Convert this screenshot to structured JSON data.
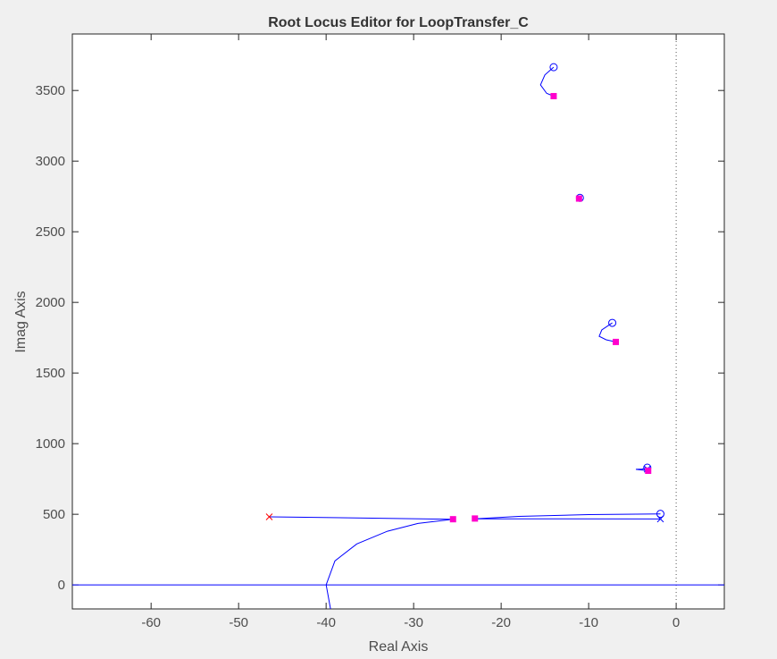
{
  "chart_data": {
    "type": "line",
    "title": "Root Locus Editor for LoopTransfer_C",
    "xlabel": "Real Axis",
    "ylabel": "Imag Axis",
    "xlim": [
      -69,
      5.5
    ],
    "ylim": [
      -170,
      3900
    ],
    "xticks": [
      -60,
      -50,
      -40,
      -30,
      -20,
      -10,
      0
    ],
    "yticks": [
      0,
      500,
      1000,
      1500,
      2000,
      2500,
      3000,
      3500
    ],
    "grid": false,
    "colors": {
      "locus": "#0000ff",
      "closed_loop_poles": "#ff00cc",
      "red_pole": "#ff0000",
      "axes_frame": "#262626",
      "background": "#ffffff",
      "figure_background": "#f0f0f0"
    },
    "series": [
      {
        "values": [
          [
            -46.5,
            482
          ],
          [
            -25.5,
            465
          ]
        ]
      },
      {
        "values": [
          [
            -39.5,
            -170
          ],
          [
            -40,
            0
          ],
          [
            -39,
            170
          ],
          [
            -36.5,
            290
          ],
          [
            -33,
            380
          ],
          [
            -29.5,
            435
          ],
          [
            -25.5,
            465
          ]
        ]
      },
      {
        "values": [
          [
            -23,
            468
          ],
          [
            -1.8,
            467
          ]
        ]
      },
      {
        "values": [
          [
            -23,
            468
          ],
          [
            -18,
            485
          ],
          [
            -10,
            498
          ],
          [
            -1.8,
            503
          ]
        ]
      },
      {
        "values": [
          [
            -3.3,
            830
          ],
          [
            -3.9,
            820
          ],
          [
            -4.6,
            818
          ],
          [
            -3.2,
            808
          ]
        ]
      },
      {
        "values": [
          [
            -7.3,
            1855
          ],
          [
            -8.5,
            1805
          ],
          [
            -8.8,
            1760
          ],
          [
            -8,
            1735
          ],
          [
            -6.9,
            1720
          ]
        ]
      },
      {
        "values": [
          [
            -11,
            2740
          ],
          [
            -11.1,
            2735
          ]
        ]
      },
      {
        "values": [
          [
            -14,
            3665
          ],
          [
            -15,
            3610
          ],
          [
            -15.5,
            3540
          ],
          [
            -14.8,
            3480
          ],
          [
            -14,
            3460
          ]
        ]
      },
      {
        "values": [
          [
            -69,
            0
          ],
          [
            5.5,
            0
          ]
        ]
      }
    ],
    "open_loop_poles": [
      {
        "x": -46.5,
        "y": 482,
        "color": "#ff0000"
      },
      {
        "x": -1.8,
        "y": 467,
        "color": "#0000ff"
      },
      {
        "x": -3.3,
        "y": 820,
        "color": "#0000ff"
      }
    ],
    "zeros": [
      {
        "x": -14,
        "y": 3665
      },
      {
        "x": -11,
        "y": 2740
      },
      {
        "x": -7.3,
        "y": 1855
      },
      {
        "x": -3.3,
        "y": 830
      },
      {
        "x": -1.8,
        "y": 503
      }
    ],
    "closed_loop_poles": [
      {
        "x": -14,
        "y": 3460
      },
      {
        "x": -11.1,
        "y": 2735
      },
      {
        "x": -6.9,
        "y": 1720
      },
      {
        "x": -3.2,
        "y": 808
      },
      {
        "x": -25.5,
        "y": 465
      },
      {
        "x": -23,
        "y": 470
      }
    ],
    "imag_axis_line": {
      "x": 0,
      "style": "dotted"
    }
  }
}
